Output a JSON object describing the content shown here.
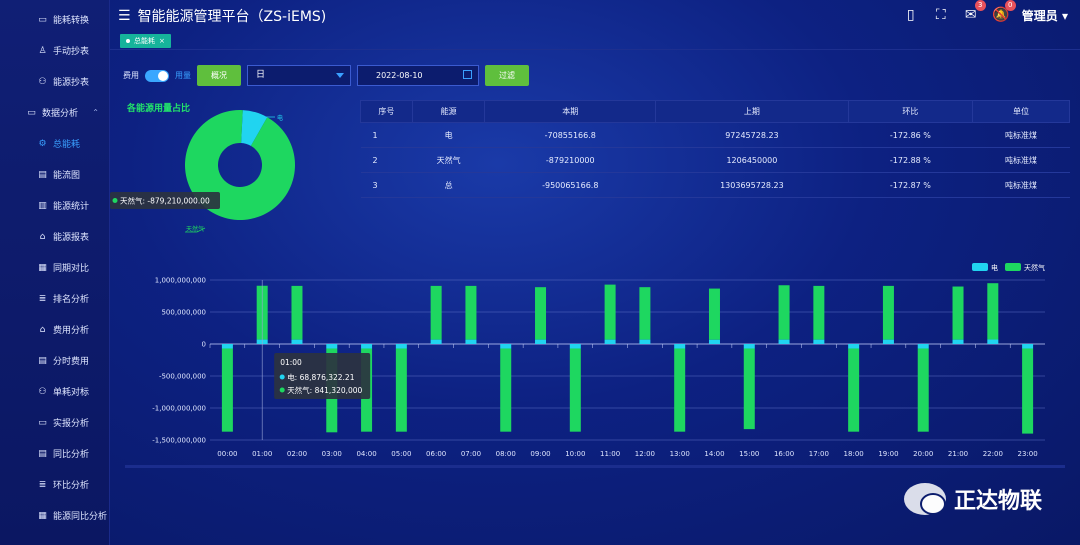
{
  "app": {
    "title": "智能能源管理平台（ZS-iEMS)",
    "user": "管理员",
    "notif_mail": "3",
    "notif_bell": "0"
  },
  "tabs": [
    {
      "label": "总能耗"
    }
  ],
  "sidebar": {
    "items": [
      {
        "label": "能耗转换",
        "icon": "monitor-icon"
      },
      {
        "label": "手动抄表",
        "icon": "user-icon"
      },
      {
        "label": "能源抄表",
        "icon": "nodes-icon"
      },
      {
        "label": "数据分析",
        "icon": "monitor-icon",
        "group": true
      },
      {
        "label": "总能耗",
        "icon": "gear-icon",
        "active": true
      },
      {
        "label": "能流图",
        "icon": "doc-icon"
      },
      {
        "label": "能源统计",
        "icon": "map-icon"
      },
      {
        "label": "能源报表",
        "icon": "home-icon"
      },
      {
        "label": "同期对比",
        "icon": "chart-icon"
      },
      {
        "label": "排名分析",
        "icon": "list-icon"
      },
      {
        "label": "费用分析",
        "icon": "home-icon"
      },
      {
        "label": "分时费用",
        "icon": "doc-icon"
      },
      {
        "label": "单耗对标",
        "icon": "nodes-icon"
      },
      {
        "label": "实报分析",
        "icon": "monitor-icon"
      },
      {
        "label": "同比分析",
        "icon": "doc-icon"
      },
      {
        "label": "环比分析",
        "icon": "list-icon"
      },
      {
        "label": "能源同比分析",
        "icon": "chart-icon"
      }
    ]
  },
  "filters": {
    "cost_label": "费用",
    "usage_label": "用量",
    "overview_btn": "概况",
    "period": "日",
    "date": "2022-08-10",
    "filter_btn": "过滤"
  },
  "pie": {
    "title": "各能源用量占比",
    "label_elec": "电",
    "label_gas": "天然气",
    "tooltip": "天然气: -879,210,000.00",
    "color_elec": "#21d4f0",
    "color_gas": "#1ed760"
  },
  "table": {
    "headers": [
      "序号",
      "能源",
      "本期",
      "上期",
      "环比",
      "单位"
    ],
    "rows": [
      [
        "1",
        "电",
        "-70855166.8",
        "97245728.23",
        "-172.86 %",
        "吨标准煤"
      ],
      [
        "2",
        "天然气",
        "-879210000",
        "1206450000",
        "-172.88 %",
        "吨标准煤"
      ],
      [
        "3",
        "总",
        "-950065166.8",
        "1303695728.23",
        "-172.87 %",
        "吨标准煤"
      ]
    ]
  },
  "chart_data": {
    "type": "bar",
    "categories": [
      "00:00",
      "01:00",
      "02:00",
      "03:00",
      "04:00",
      "05:00",
      "06:00",
      "07:00",
      "08:00",
      "09:00",
      "10:00",
      "11:00",
      "12:00",
      "13:00",
      "14:00",
      "15:00",
      "16:00",
      "17:00",
      "18:00",
      "19:00",
      "20:00",
      "21:00",
      "22:00",
      "23:00"
    ],
    "series": [
      {
        "name": "电",
        "color": "#21d4f0",
        "values": [
          -70000000,
          68876322.21,
          68000000,
          -70000000,
          -70000000,
          -70000000,
          68000000,
          68000000,
          -70000000,
          68000000,
          -70000000,
          68000000,
          68000000,
          -70000000,
          66000000,
          -70000000,
          68000000,
          68000000,
          -70000000,
          68000000,
          -70000000,
          68000000,
          70000000,
          -70000000
        ]
      },
      {
        "name": "天然气",
        "color": "#1ed760",
        "values": [
          -1300000000,
          841320000,
          840000000,
          -1310000000,
          -1300000000,
          -1300000000,
          840000000,
          840000000,
          -1300000000,
          820000000,
          -1300000000,
          860000000,
          820000000,
          -1300000000,
          800000000,
          -1260000000,
          850000000,
          840000000,
          -1300000000,
          840000000,
          -1300000000,
          830000000,
          880000000,
          -1330000000
        ]
      }
    ],
    "yticks": [
      "1,000,000,000",
      "500,000,000",
      "0",
      "-500,000,000",
      "-1,000,000,000",
      "-1,500,000,000"
    ],
    "ylim": [
      -1500000000,
      1000000000
    ],
    "legend": "top-right",
    "tooltip": {
      "title": "01:00",
      "line1": "电: 68,876,322.21",
      "line2": "天然气: 841,320,000"
    }
  },
  "watermark": "正达物联"
}
